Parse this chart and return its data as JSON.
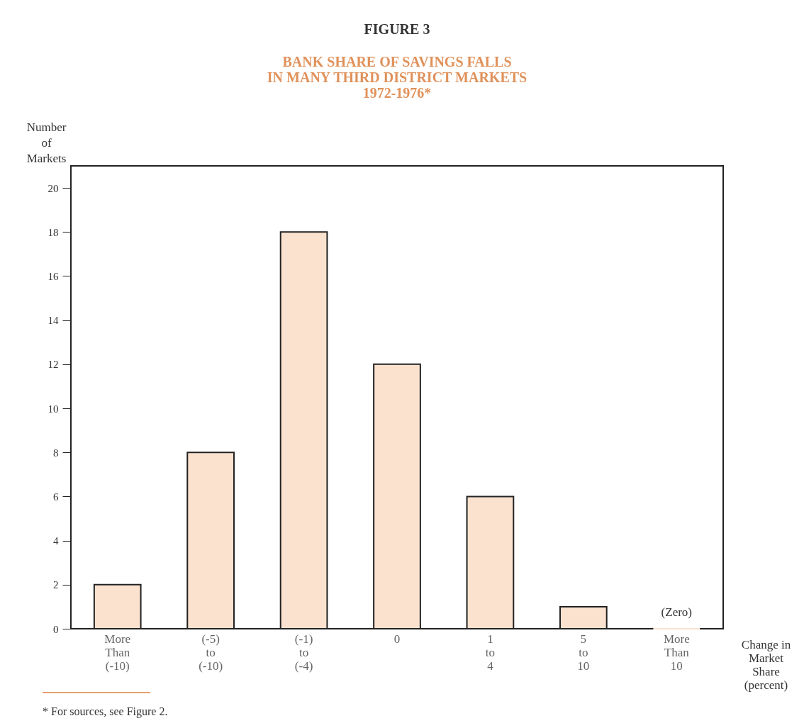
{
  "chart_data": {
    "type": "bar",
    "title": "FIGURE 3",
    "subtitle": "BANK SHARE OF SAVINGS FALLS\nIN MANY THIRD DISTRICT MARKETS\n1972-1976*",
    "ylabel": "Number\nof\nMarkets",
    "xlabel": "Change in\nMarket\nShare\n(percent)",
    "categories": [
      "More Than (-10)",
      "(-5) to (-10)",
      "(-1) to (-4)",
      "0",
      "1 to 4",
      "5 to 10",
      "More Than 10"
    ],
    "values": [
      2,
      8,
      18,
      12,
      6,
      1,
      0
    ],
    "color": "#fbe2cf",
    "ylim": [
      0,
      21
    ],
    "yticks": [
      0,
      2,
      4,
      6,
      8,
      10,
      12,
      14,
      16,
      18,
      20
    ],
    "grid": false,
    "annotations": [
      {
        "text": "(Zero)",
        "x": "More Than 10",
        "y": 0
      },
      "* For sources, see Figure 2."
    ]
  }
}
